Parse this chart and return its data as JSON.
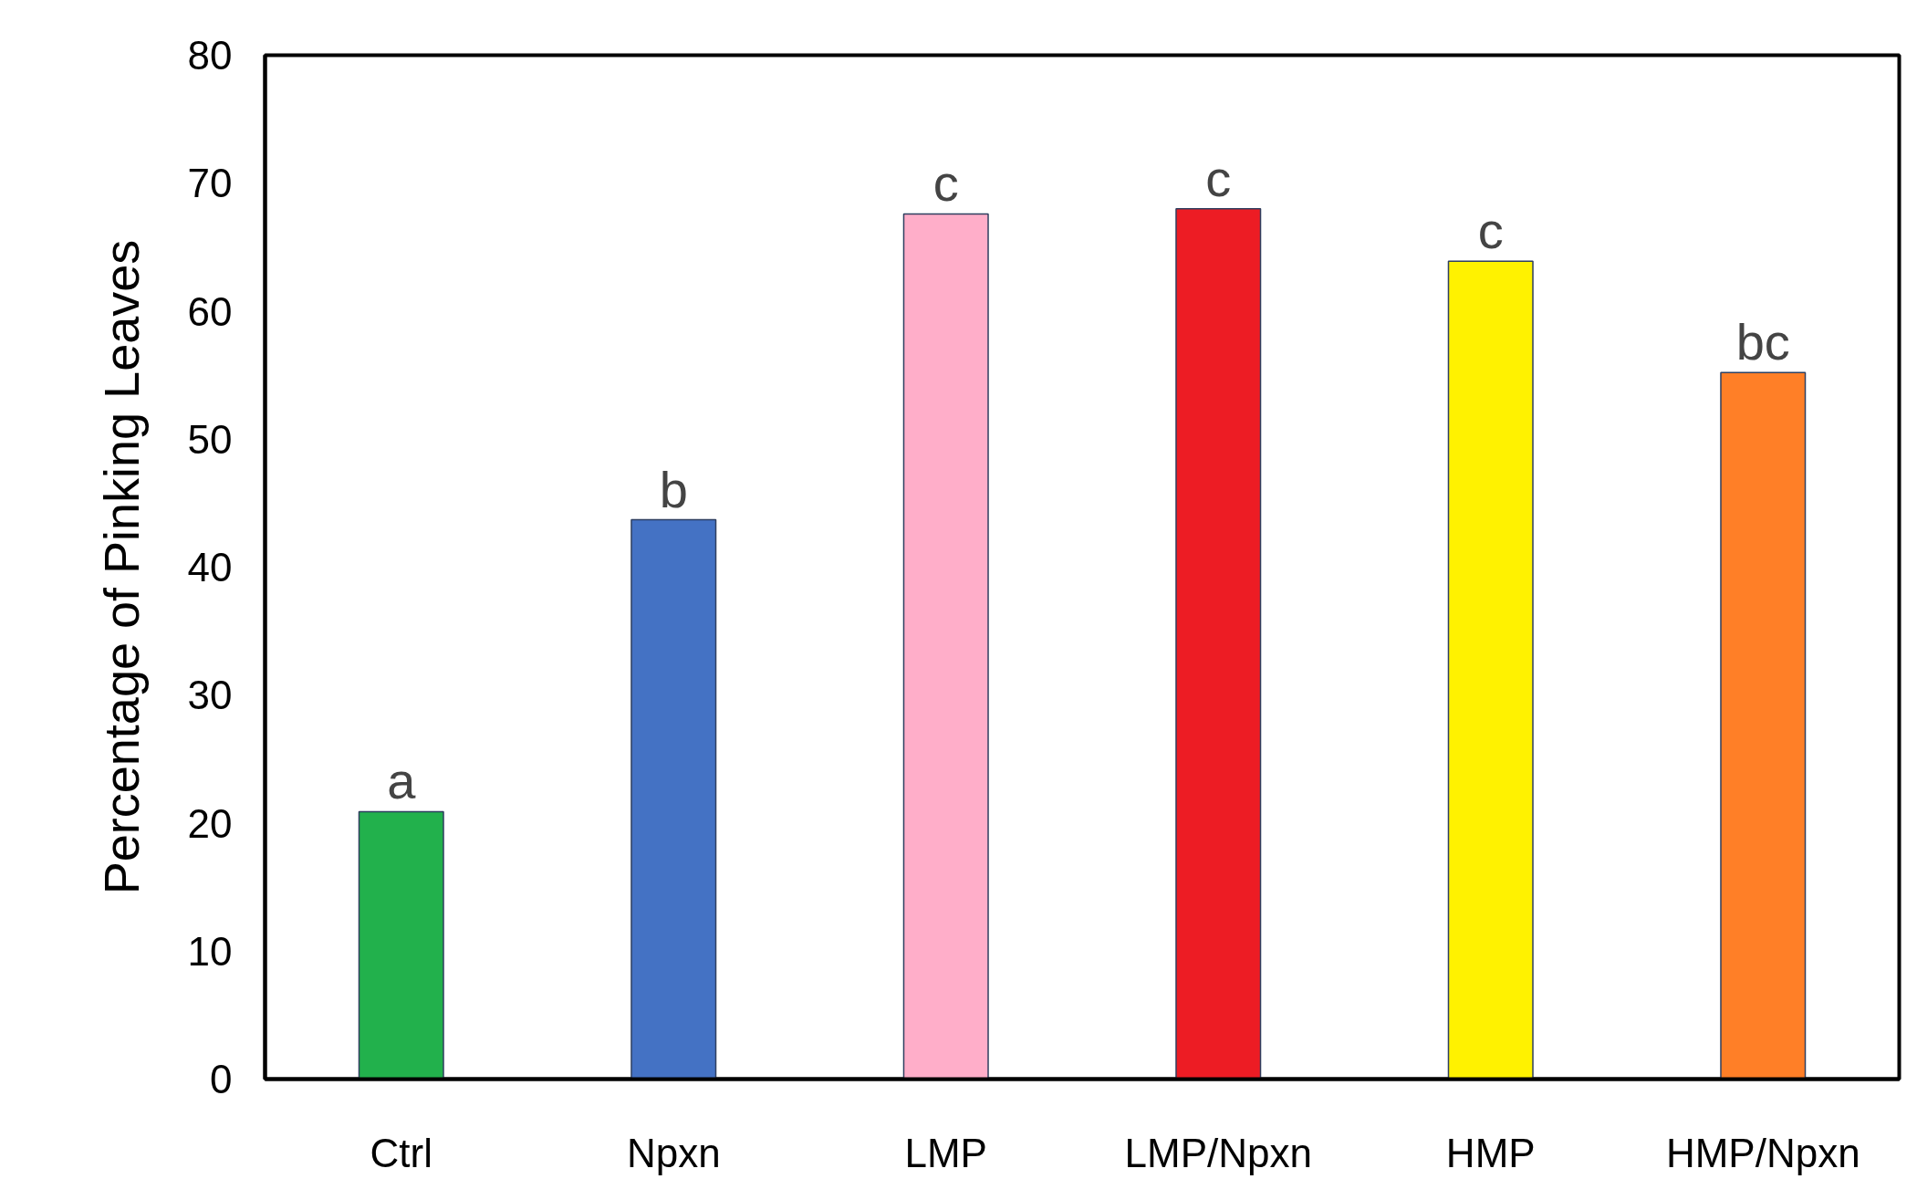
{
  "chart_data": {
    "type": "bar",
    "ylabel": "Percentage of Pinking Leaves",
    "categories": [
      "Ctrl",
      "Npxn",
      "LMP",
      "LMP/Npxn",
      "HMP",
      "HMP/Npxn"
    ],
    "values": [
      20.9,
      43.7,
      67.6,
      68.0,
      63.9,
      55.2
    ],
    "colors": [
      "#22b14c",
      "#4472c4",
      "#ffaec9",
      "#ed1c24",
      "#fff200",
      "#ff7f27"
    ],
    "ylim": [
      0,
      80
    ],
    "yticks": [
      0,
      10,
      20,
      30,
      40,
      50,
      60,
      70,
      80
    ],
    "grid": false,
    "annotations": [
      {
        "text": "a",
        "x": "Ctrl",
        "y": 20.9
      },
      {
        "text": "b",
        "x": "Npxn",
        "y": 43.7
      },
      {
        "text": "c",
        "x": "LMP",
        "y": 67.6
      },
      {
        "text": "c",
        "x": "LMP/Npxn",
        "y": 68.0
      },
      {
        "text": "c",
        "x": "HMP",
        "y": 63.9
      },
      {
        "text": "bc",
        "x": "HMP/Npxn",
        "y": 55.2
      }
    ]
  }
}
